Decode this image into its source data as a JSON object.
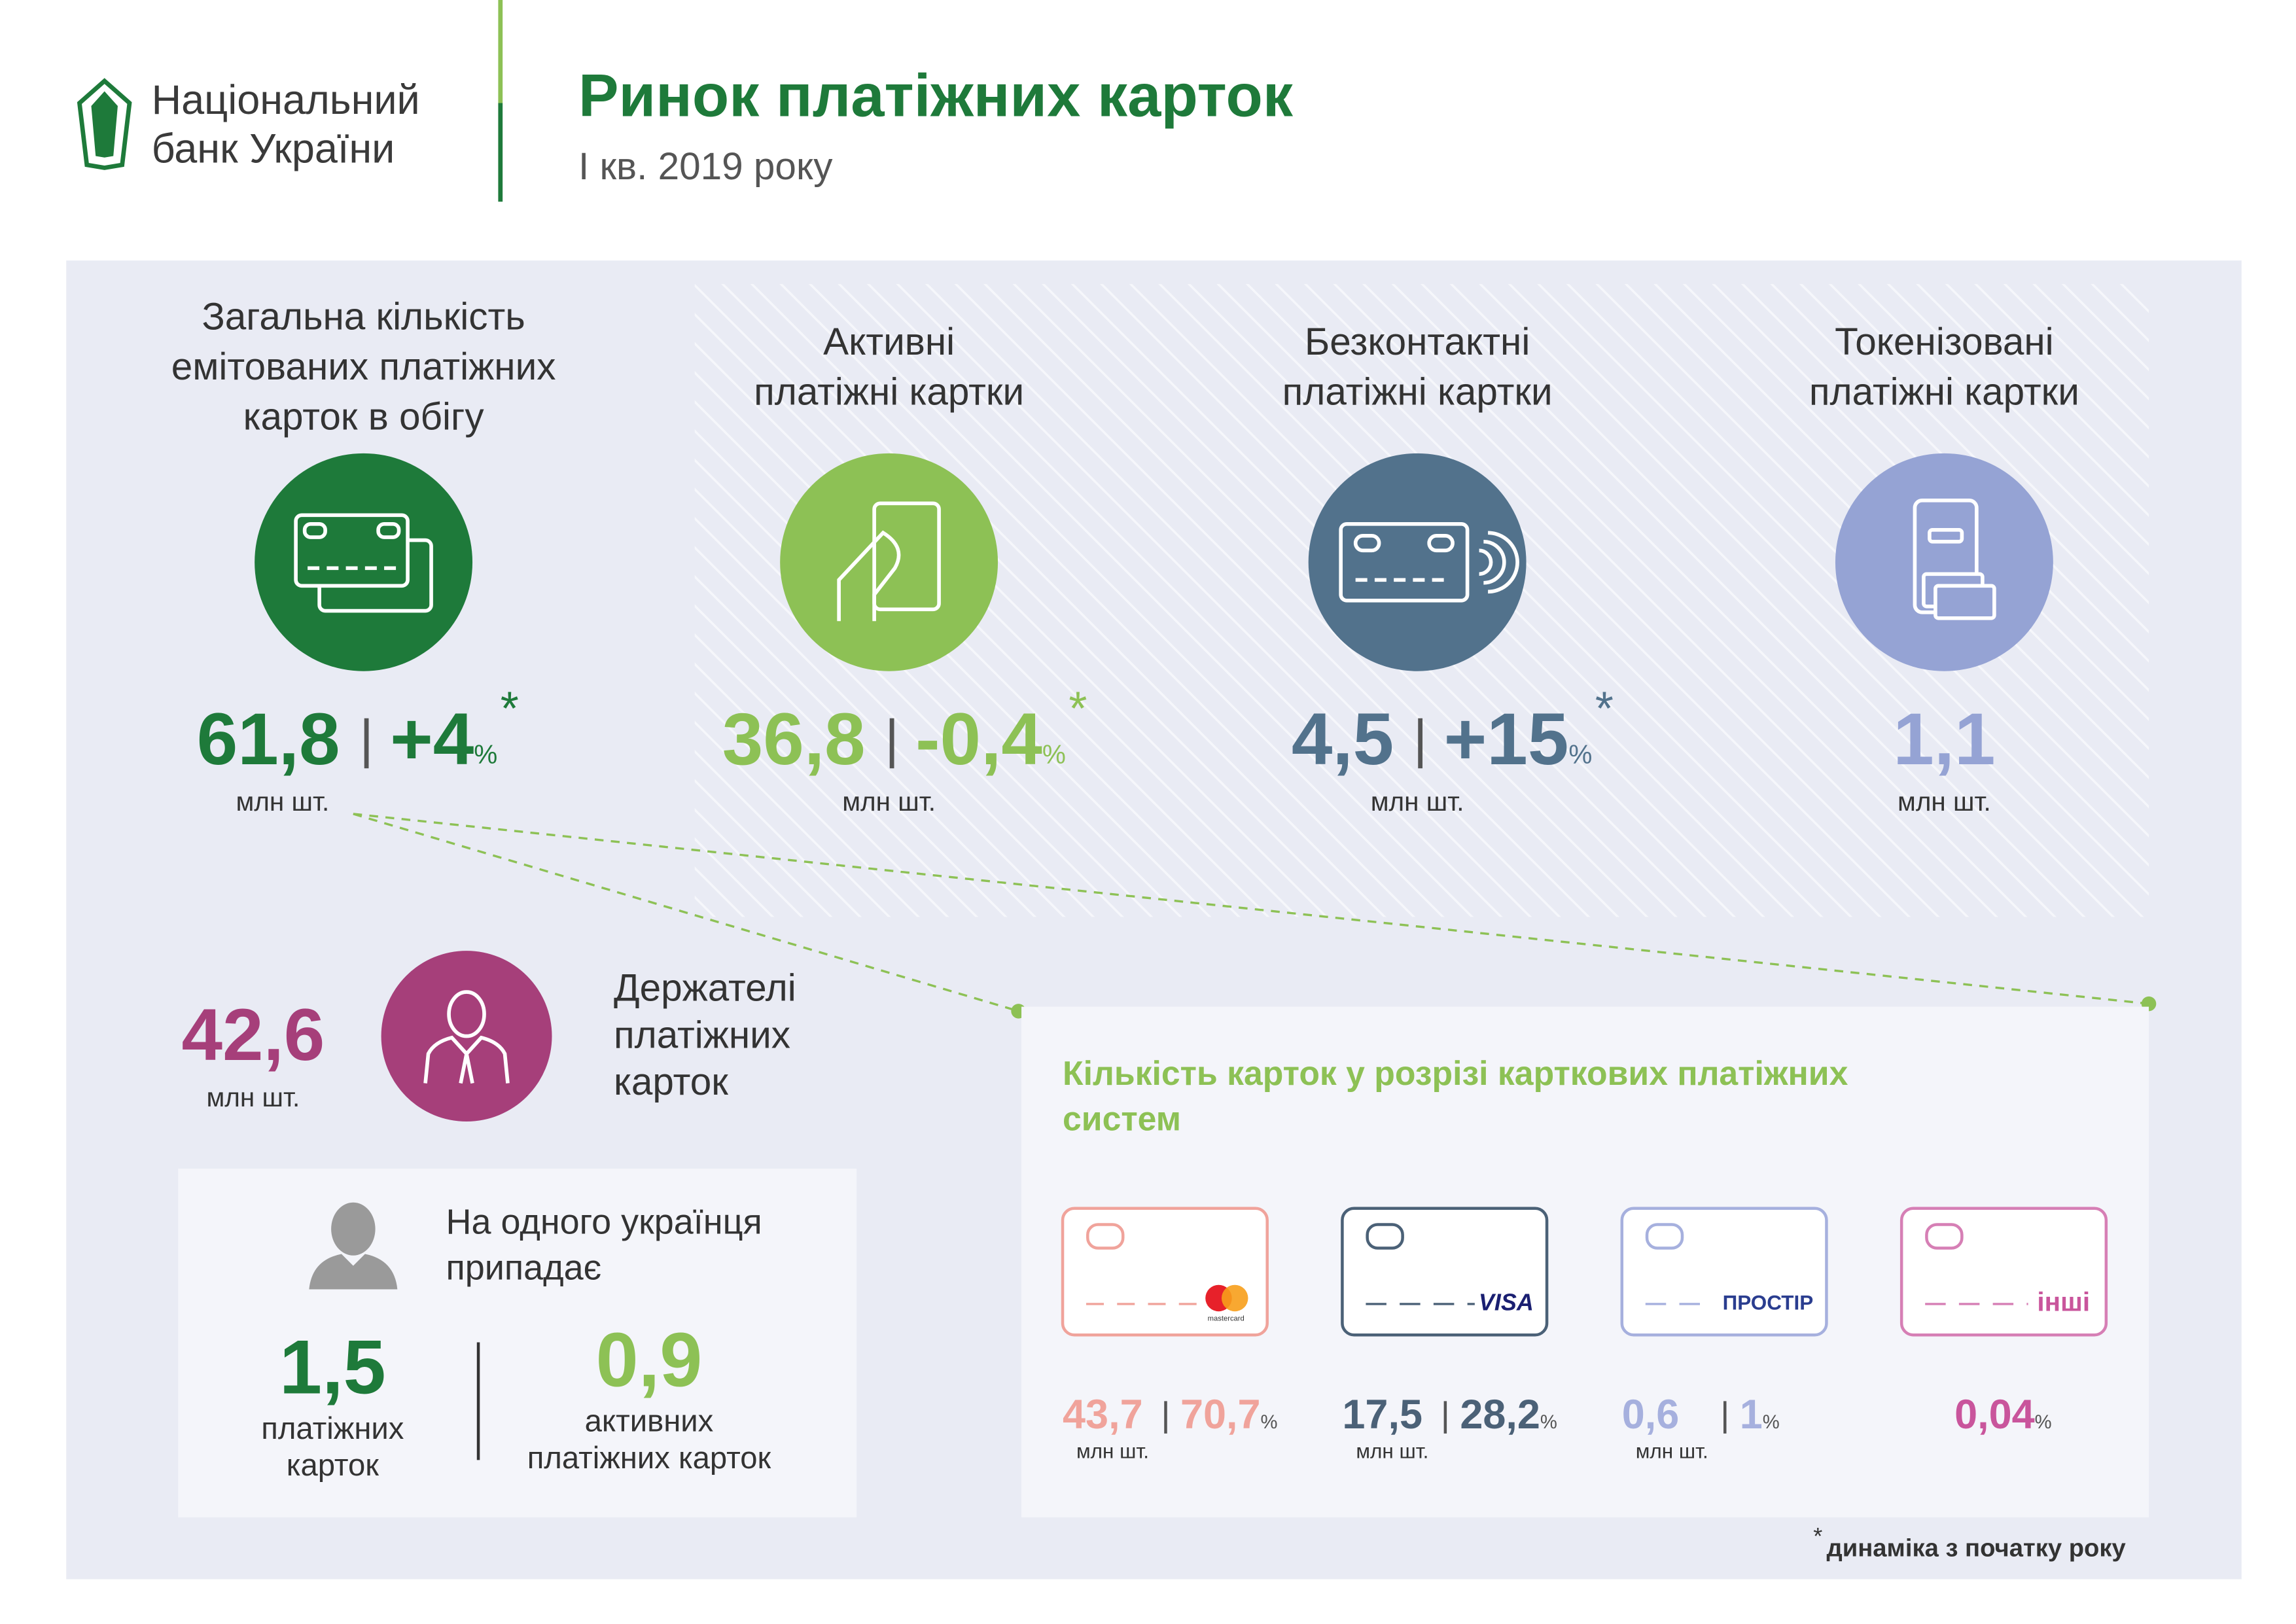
{
  "header": {
    "logo_lines": [
      "Національний",
      "банк України"
    ],
    "title": "Ринок платіжних карток",
    "subtitle": "I кв. 2019 року"
  },
  "cards": [
    {
      "label_lines": [
        "Загальна кількість",
        "емітованих платіжних",
        "карток в обігу"
      ],
      "value": "61,8",
      "change": "+4",
      "change_unit": "%",
      "note": "*",
      "unit": "млн шт."
    },
    {
      "label_lines": [
        "Активні",
        "платіжні картки"
      ],
      "value": "36,8",
      "change": "-0,4",
      "change_unit": "%",
      "note": "*",
      "unit": "млн шт."
    },
    {
      "label_lines": [
        "Безконтактні",
        "платіжні картки"
      ],
      "value": "4,5",
      "change": "+15",
      "change_unit": "%",
      "note": "*",
      "unit": "млн шт."
    },
    {
      "label_lines": [
        "Токенізовані",
        "платіжні картки"
      ],
      "value": "1,1",
      "unit": "млн шт."
    }
  ],
  "holders": {
    "value": "42,6",
    "unit": "млн шт.",
    "label_lines": [
      "Держателі",
      "платіжних",
      "карток"
    ]
  },
  "per_capita": {
    "heading_lines": [
      "На одного українця",
      "припадає"
    ],
    "items": [
      {
        "value": "1,5",
        "label_lines": [
          "платіжних",
          "карток"
        ]
      },
      {
        "value": "0,9",
        "label_lines": [
          "активних",
          "платіжних карток"
        ]
      }
    ]
  },
  "systems": {
    "title_lines": [
      "Кількість карток у розрізі карткових платіжних",
      "систем"
    ],
    "items": [
      {
        "logo": "mastercard",
        "value": "43,7",
        "share": "70,7",
        "share_unit": "%",
        "unit": "млн шт."
      },
      {
        "logo": "VISA",
        "value": "17,5",
        "share": "28,2",
        "share_unit": "%",
        "unit": "млн шт."
      },
      {
        "logo": "ПРОСТІР",
        "value": "0,6",
        "share": "1",
        "share_unit": "%",
        "unit": "млн шт."
      },
      {
        "logo": "інші",
        "share": "0,04",
        "share_unit": "%"
      }
    ]
  },
  "footnote": {
    "mark": "*",
    "text": "динаміка з початку року"
  }
}
